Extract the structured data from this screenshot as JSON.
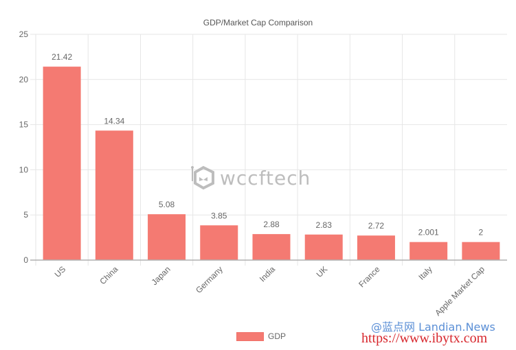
{
  "chart_data": {
    "type": "bar",
    "title": "GDP/Market Cap Comparison",
    "categories": [
      "US",
      "China",
      "Japan",
      "Germany",
      "India",
      "UK",
      "France",
      "Italy",
      "Apple Market Cap"
    ],
    "series": [
      {
        "name": "GDP",
        "values": [
          21.42,
          14.34,
          5.08,
          3.85,
          2.88,
          2.83,
          2.72,
          2.001,
          2
        ],
        "color": "#f47a72"
      }
    ],
    "data_labels": [
      "21.42",
      "14.34",
      "5.08",
      "3.85",
      "2.88",
      "2.83",
      "2.72",
      "2.001",
      "2"
    ],
    "xlabel": "",
    "ylabel": "",
    "ylim": [
      0,
      25
    ],
    "yticks": [
      0,
      5,
      10,
      15,
      20,
      25
    ],
    "grid": true,
    "legend_position": "bottom"
  },
  "legend": {
    "label": "GDP"
  },
  "watermarks": {
    "logo_text": "wccftech",
    "source_line": "@蓝点网 Landian.News",
    "url_line": "https://www.ibytx.com"
  },
  "colors": {
    "bar": "#f47a72",
    "grid": "#e6e6e6",
    "axis": "#b0b0b0",
    "text": "#666666"
  }
}
